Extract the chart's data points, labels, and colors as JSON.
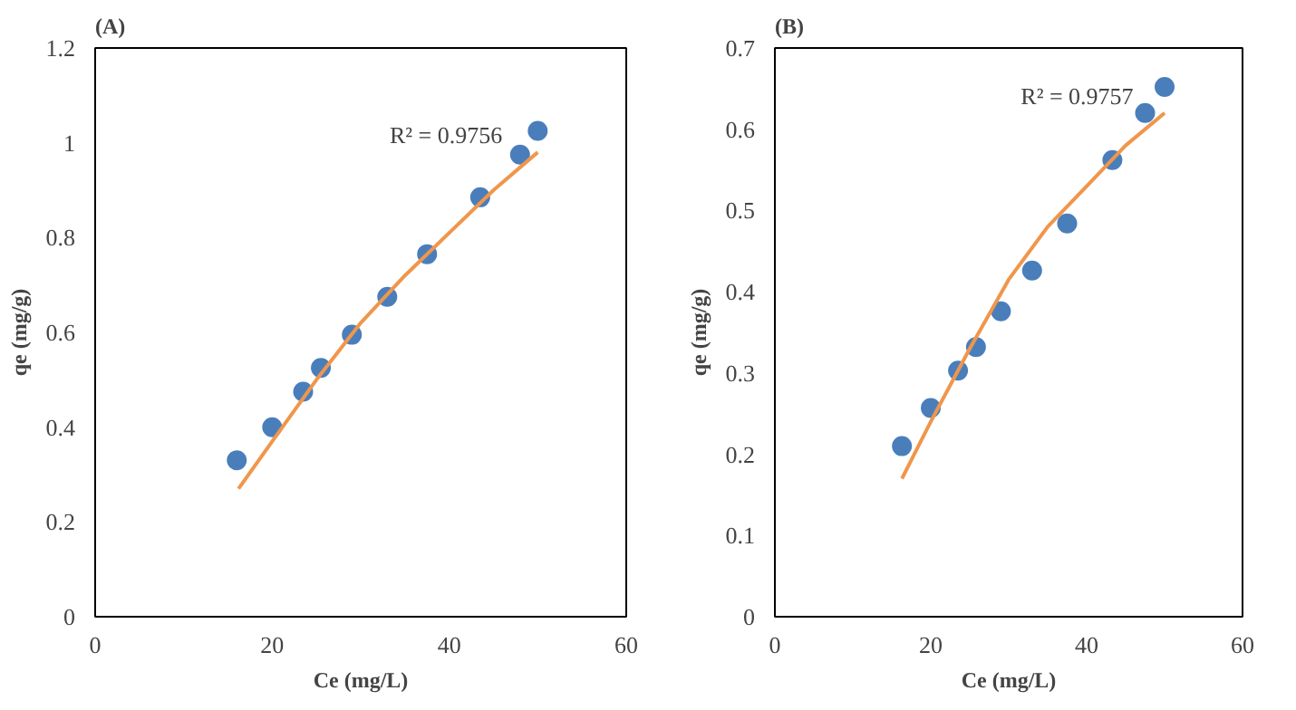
{
  "chart_data": [
    {
      "type": "scatter",
      "title": "(A)",
      "xlabel": "Ce (mg/L)",
      "ylabel": "qe (mg/g)",
      "xlim": [
        0,
        60
      ],
      "xticks": [
        0,
        20,
        40,
        60
      ],
      "ylim": [
        0,
        1.2
      ],
      "yticks": [
        0,
        0.2,
        0.4,
        0.6,
        0.8,
        1,
        1.2
      ],
      "grid": false,
      "annotations": [
        {
          "text": "R² = 0.9756",
          "x": 46,
          "y": 0.98
        }
      ],
      "series": [
        {
          "marker": "circle",
          "color": "#4a7ebb",
          "x": [
            16,
            20,
            23.5,
            25.5,
            29,
            33,
            37.5,
            43.5,
            48,
            50
          ],
          "values": [
            0.33,
            0.4,
            0.475,
            0.525,
            0.595,
            0.675,
            0.765,
            0.885,
            0.975,
            1.025
          ]
        },
        {
          "type": "line",
          "color": "#f0964b",
          "line_style": "solid",
          "x": [
            16.2,
            20,
            25,
            30,
            35,
            40,
            45,
            50
          ],
          "values": [
            0.27,
            0.37,
            0.5,
            0.62,
            0.72,
            0.81,
            0.9,
            0.98
          ]
        }
      ]
    },
    {
      "type": "scatter",
      "title": "(B)",
      "xlabel": "Ce (mg/L)",
      "ylabel": "qe (mg/g)",
      "xlim": [
        0,
        60
      ],
      "xticks": [
        0,
        20,
        40,
        60
      ],
      "ylim": [
        0,
        0.7
      ],
      "yticks": [
        0,
        0.1,
        0.2,
        0.3,
        0.4,
        0.5,
        0.6,
        0.7
      ],
      "grid": false,
      "annotations": [
        {
          "text": "R² = 0.9757",
          "x": 46,
          "y": 0.62
        }
      ],
      "series": [
        {
          "marker": "circle",
          "color": "#4a7ebb",
          "x": [
            16.3,
            20,
            23.5,
            25.8,
            29,
            33,
            37.5,
            43.3,
            47.5,
            50
          ],
          "values": [
            0.21,
            0.257,
            0.303,
            0.332,
            0.376,
            0.426,
            0.484,
            0.562,
            0.62,
            0.652
          ]
        },
        {
          "type": "line",
          "color": "#f0964b",
          "line_style": "solid",
          "x": [
            16.3,
            20,
            25,
            30,
            35,
            40,
            45,
            50
          ],
          "values": [
            0.17,
            0.24,
            0.33,
            0.415,
            0.48,
            0.53,
            0.58,
            0.62
          ]
        }
      ]
    }
  ]
}
